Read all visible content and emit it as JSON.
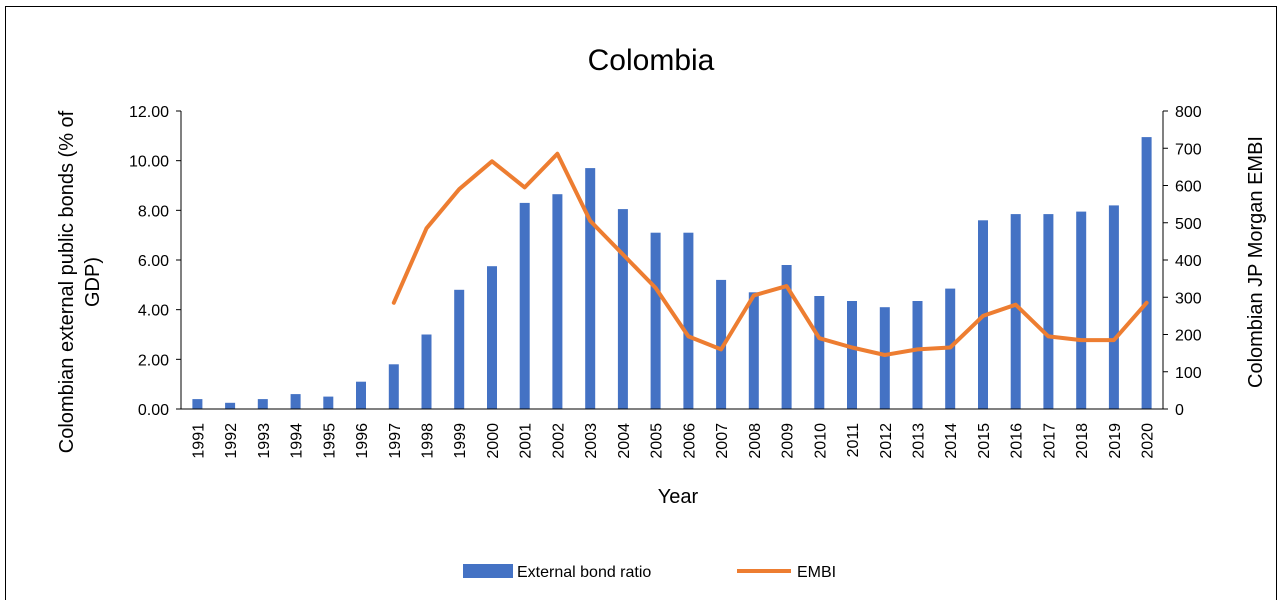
{
  "chart_data": {
    "type": "bar",
    "title": "Colombia",
    "xlabel": "Year",
    "ylabel": "Colombian external public bonds (% of GDP)",
    "ylabel_lines": [
      "Colombian external public bonds (% of",
      "GDP)"
    ],
    "y2label": "Colombian JP Morgan EMBI",
    "categories": [
      "1991",
      "1992",
      "1993",
      "1994",
      "1995",
      "1996",
      "1997",
      "1998",
      "1999",
      "2000",
      "2001",
      "2002",
      "2003",
      "2004",
      "2005",
      "2006",
      "2007",
      "2008",
      "2009",
      "2010",
      "2011",
      "2012",
      "2013",
      "2014",
      "2015",
      "2016",
      "2017",
      "2018",
      "2019",
      "2020"
    ],
    "ylim": [
      0,
      12
    ],
    "y_ticks": [
      "0.00",
      "2.00",
      "4.00",
      "6.00",
      "8.00",
      "10.00",
      "12.00"
    ],
    "y2lim": [
      0,
      800
    ],
    "y2_ticks": [
      "0",
      "100",
      "200",
      "300",
      "400",
      "500",
      "600",
      "700",
      "800"
    ],
    "grid": false,
    "legend_position": "bottom",
    "series": [
      {
        "name": "External bond ratio",
        "type": "bar",
        "axis": "left",
        "color": "#4472C4",
        "values": [
          0.4,
          0.25,
          0.4,
          0.6,
          0.5,
          1.1,
          1.8,
          3.0,
          4.8,
          5.75,
          8.3,
          8.65,
          9.7,
          8.05,
          7.1,
          7.1,
          5.2,
          4.7,
          5.8,
          4.55,
          4.35,
          4.1,
          4.35,
          4.85,
          7.6,
          7.85,
          7.85,
          7.95,
          8.2,
          10.95
        ]
      },
      {
        "name": "EMBI",
        "type": "line",
        "axis": "right",
        "color": "#ED7D31",
        "values": [
          null,
          null,
          null,
          null,
          null,
          null,
          285,
          485,
          590,
          665,
          595,
          685,
          505,
          415,
          325,
          195,
          160,
          305,
          330,
          190,
          165,
          145,
          160,
          165,
          250,
          280,
          195,
          185,
          185,
          285
        ]
      }
    ]
  }
}
